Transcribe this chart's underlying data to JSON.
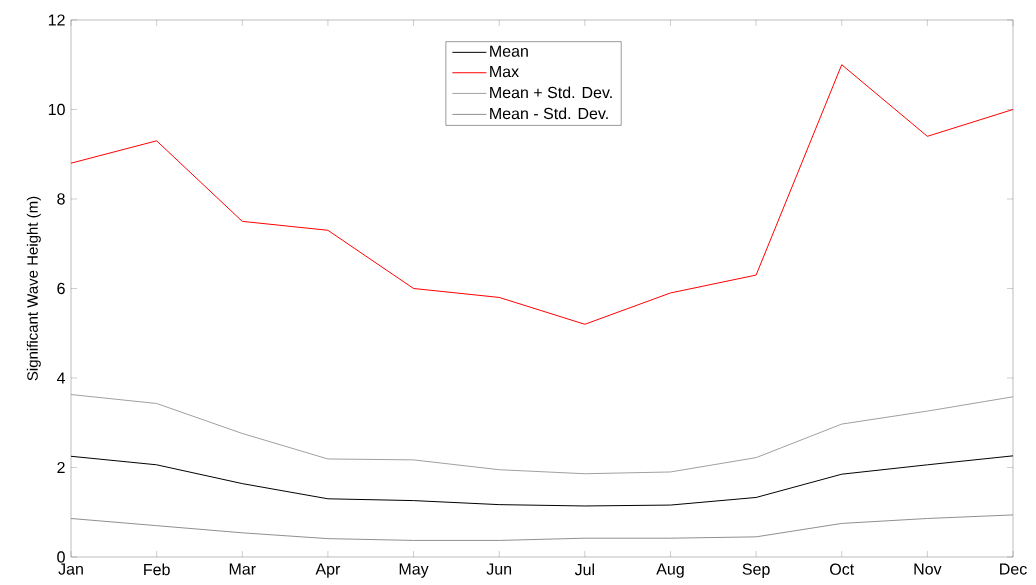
{
  "chart_data": {
    "type": "line",
    "ylabel": "Significant Wave Height (m)",
    "categories": [
      "Jan",
      "Feb",
      "Mar",
      "Apr",
      "May",
      "Jun",
      "Jul",
      "Aug",
      "Sep",
      "Oct",
      "Nov",
      "Dec"
    ],
    "series": [
      {
        "name": "Mean",
        "color": "#000000",
        "values": [
          2.25,
          2.06,
          1.64,
          1.3,
          1.26,
          1.17,
          1.14,
          1.16,
          1.33,
          1.85,
          2.06,
          2.26
        ]
      },
      {
        "name": "Max",
        "color": "#ff0000",
        "values": [
          8.8,
          9.3,
          7.5,
          7.3,
          6.0,
          5.8,
          5.2,
          5.9,
          6.3,
          11.0,
          9.4,
          10.0
        ]
      },
      {
        "name": "Mean + Std. Dev.",
        "color": "#a0a0a0",
        "values": [
          3.63,
          3.43,
          2.76,
          2.19,
          2.17,
          1.95,
          1.86,
          1.9,
          2.22,
          2.97,
          3.26,
          3.58
        ]
      },
      {
        "name": "Mean - Std. Dev.",
        "color": "#909090",
        "values": [
          0.86,
          0.7,
          0.54,
          0.41,
          0.37,
          0.37,
          0.42,
          0.42,
          0.45,
          0.75,
          0.86,
          0.94
        ]
      }
    ],
    "ylim": [
      0,
      12
    ],
    "yticks": [
      0,
      2,
      4,
      6,
      8,
      10,
      12
    ],
    "legend": "top",
    "grid": false,
    "marker": "none",
    "line_style": "solid"
  }
}
